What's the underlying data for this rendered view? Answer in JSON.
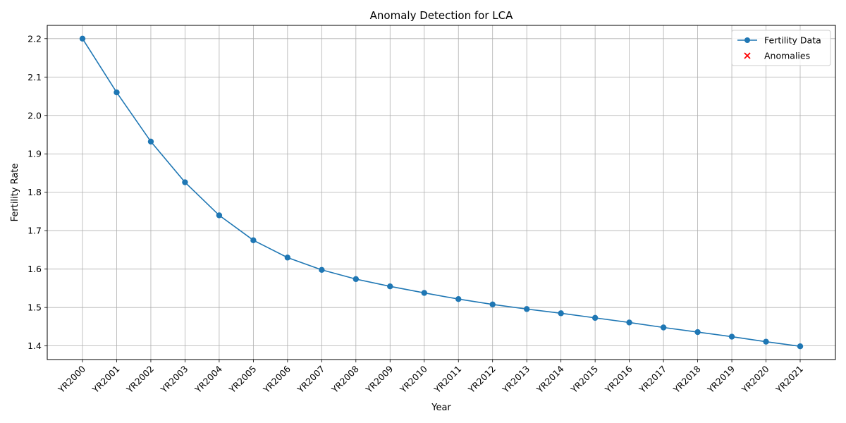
{
  "chart_data": {
    "type": "line",
    "title": "Anomaly Detection for LCA",
    "xlabel": "Year",
    "ylabel": "Fertility Rate",
    "categories": [
      "YR2000",
      "YR2001",
      "YR2002",
      "YR2003",
      "YR2004",
      "YR2005",
      "YR2006",
      "YR2007",
      "YR2008",
      "YR2009",
      "YR2010",
      "YR2011",
      "YR2012",
      "YR2013",
      "YR2014",
      "YR2015",
      "YR2016",
      "YR2017",
      "YR2018",
      "YR2019",
      "YR2020",
      "YR2021"
    ],
    "series": [
      {
        "name": "Fertility Data",
        "color": "#1f77b4",
        "marker": "circle",
        "values": [
          2.2,
          2.06,
          1.932,
          1.826,
          1.74,
          1.675,
          1.63,
          1.598,
          1.574,
          1.555,
          1.538,
          1.522,
          1.508,
          1.496,
          1.485,
          1.473,
          1.461,
          1.448,
          1.436,
          1.424,
          1.411,
          1.399
        ]
      },
      {
        "name": "Anomalies",
        "color": "#ff0000",
        "marker": "x",
        "points": []
      }
    ],
    "yticks": [
      "1.4",
      "1.5",
      "1.6",
      "1.7",
      "1.8",
      "1.9",
      "2.0",
      "2.1",
      "2.2"
    ],
    "ylim": [
      1.3645,
      2.2345
    ],
    "grid": true,
    "legend_position": "top-right"
  }
}
